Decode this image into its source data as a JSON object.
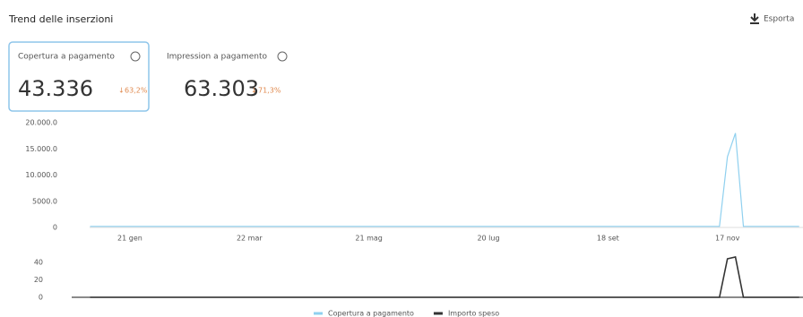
{
  "header": {
    "title": "Trend delle inserzioni",
    "export": "Esporta"
  },
  "metrics": [
    {
      "label": "Copertura a pagamento",
      "value": "43.336",
      "change": "63,2%"
    },
    {
      "label": "Impression a pagamento",
      "value": "63.303",
      "change": "71,3%"
    }
  ],
  "chart_data": [
    {
      "type": "line",
      "categories": [
        null,
        null,
        null,
        null,
        null,
        "21 gen",
        null,
        null,
        null,
        null,
        null,
        null,
        null,
        null,
        null,
        null,
        null,
        null,
        null,
        null,
        "22 mar",
        null,
        null,
        null,
        null,
        null,
        null,
        null,
        null,
        null,
        null,
        null,
        null,
        null,
        null,
        "21 mag",
        null,
        null,
        null,
        null,
        null,
        null,
        null,
        null,
        null,
        null,
        null,
        null,
        null,
        null,
        "20 lug",
        null,
        null,
        null,
        null,
        null,
        null,
        null,
        null,
        null,
        null,
        null,
        null,
        null,
        null,
        "18 set",
        null,
        null,
        null,
        null,
        null,
        null,
        null,
        null,
        null,
        null,
        null,
        null,
        null,
        null,
        "17 nov",
        null,
        null,
        null,
        null,
        null,
        null,
        null,
        null,
        null
      ],
      "series": [
        {
          "name": "Copertura a pagamento",
          "color": "#8fd0ef",
          "values": [
            200,
            200,
            200,
            200,
            200,
            200,
            200,
            200,
            200,
            200,
            200,
            200,
            200,
            200,
            200,
            200,
            200,
            200,
            200,
            200,
            200,
            200,
            200,
            200,
            200,
            200,
            200,
            200,
            200,
            200,
            200,
            200,
            200,
            200,
            200,
            200,
            200,
            200,
            200,
            200,
            200,
            200,
            200,
            200,
            200,
            200,
            200,
            200,
            200,
            200,
            200,
            200,
            200,
            200,
            200,
            200,
            200,
            200,
            200,
            200,
            200,
            200,
            200,
            200,
            200,
            200,
            200,
            200,
            200,
            200,
            200,
            200,
            200,
            200,
            200,
            200,
            200,
            200,
            200,
            200,
            13500,
            18000,
            200,
            200,
            200,
            200,
            200,
            200,
            200,
            200
          ]
        }
      ],
      "ylim": [
        0,
        20000
      ],
      "yticks": [
        0,
        {
          "value": 5000,
          "label": "5000.0"
        },
        {
          "value": 10000,
          "label": "10.000.0"
        },
        {
          "value": 15000,
          "label": "15.000.0"
        },
        {
          "value": 20000,
          "label": "20.000.0"
        }
      ]
    },
    {
      "type": "line",
      "series": [
        {
          "name": "Importo speso",
          "color": "#333333",
          "values": [
            0,
            0,
            0,
            0,
            0,
            0,
            0,
            0,
            0,
            0,
            0,
            0,
            0,
            0,
            0,
            0,
            0,
            0,
            0,
            0,
            0,
            0,
            0,
            0,
            0,
            0,
            0,
            0,
            0,
            0,
            0,
            0,
            0,
            0,
            0,
            0,
            0,
            0,
            0,
            0,
            0,
            0,
            0,
            0,
            0,
            0,
            0,
            0,
            0,
            0,
            0,
            0,
            0,
            0,
            0,
            0,
            0,
            0,
            0,
            0,
            0,
            0,
            0,
            0,
            0,
            0,
            0,
            0,
            0,
            0,
            0,
            0,
            0,
            0,
            0,
            0,
            0,
            0,
            0,
            0,
            44,
            46,
            0,
            0,
            0,
            0,
            0,
            0,
            0,
            0
          ]
        }
      ],
      "ylim": [
        0,
        45
      ],
      "yticks": [
        0,
        20,
        40
      ]
    }
  ]
}
